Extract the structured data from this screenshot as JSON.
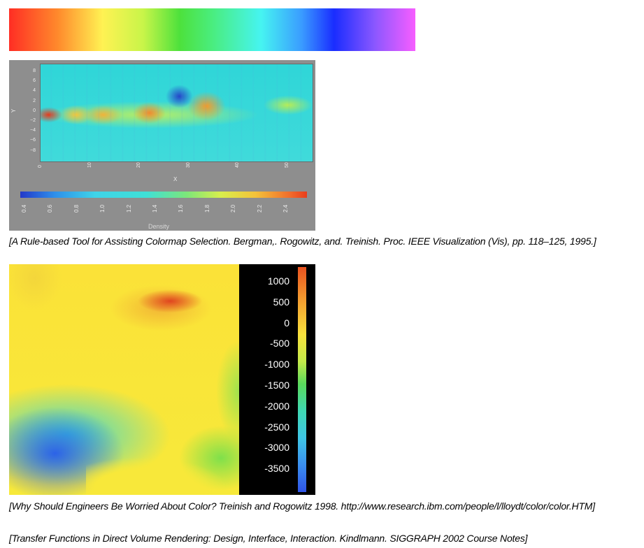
{
  "figure1": {
    "y_axis_label": "Y",
    "y_ticks": [
      "8",
      "6",
      "4",
      "2",
      "0",
      "−2",
      "−4",
      "−6",
      "−8"
    ],
    "x_axis_label": "X",
    "x_ticks": [
      "0",
      "10",
      "20",
      "30",
      "40",
      "50"
    ],
    "colorbar_label": "Density",
    "colorbar_ticks": [
      "0.4",
      "0.6",
      "0.8",
      "1.0",
      "1.2",
      "1.4",
      "1.6",
      "1.8",
      "2.0",
      "2.2",
      "2.4"
    ]
  },
  "caption1": "[A Rule-based Tool for Assisting Colormap Selection. Bergman,. Rogowitz, and. Treinish. Proc. IEEE Visualization (Vis), pp. 118–125, 1995.]",
  "figure2": {
    "legend_ticks": [
      "1000",
      "500",
      "0",
      "-500",
      "-1000",
      "-1500",
      "-2000",
      "-2500",
      "-3000",
      "-3500"
    ]
  },
  "caption2": "[Why Should Engineers Be Worried About Color? Treinish and Rogowitz 1998. http://www.research.ibm.com/people/l/lloydt/color/color.HTM]",
  "caption3": "[Transfer Functions in Direct Volume Rendering: Design, Interface, Interaction. Kindlmann. SIGGRAPH 2002 Course Notes]",
  "colors": {
    "rainbow_start": "#ff2e24",
    "rainbow_end": "#f75eff",
    "figure1_background": "#8e8e8e",
    "figure2_legend_background": "#000000"
  }
}
